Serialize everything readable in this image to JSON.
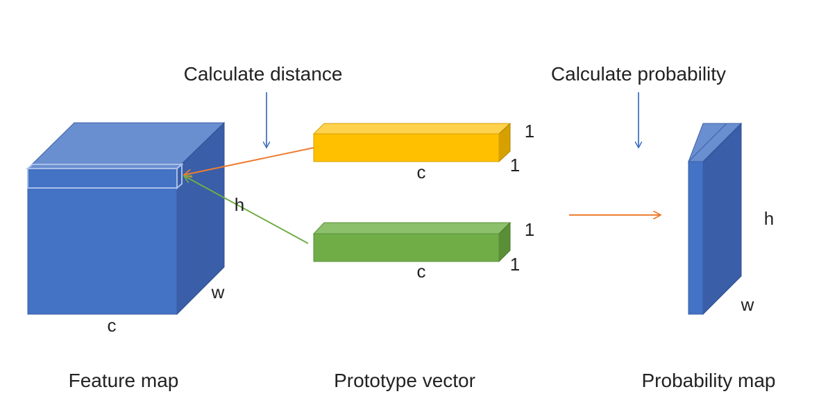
{
  "captions": {
    "calc_distance": "Calculate distance",
    "calc_probability": "Calculate probability",
    "feature_map": "Feature map",
    "prototype_vector": "Prototype vector",
    "probability_map": "Probability map"
  },
  "dims": {
    "feature_c": "c",
    "feature_h": "h",
    "feature_w": "w",
    "yellow_c": "c",
    "yellow_1_top": "1",
    "yellow_1_side": "1",
    "green_c": "c",
    "green_1_top": "1",
    "green_1_side": "1",
    "prob_h": "h",
    "prob_w": "w"
  },
  "colors": {
    "cube_front": "#4472c4",
    "cube_top": "#6a8fd0",
    "cube_side": "#3a5ea8",
    "yellow_front": "#ffc000",
    "yellow_top": "#ffd24d",
    "yellow_side": "#d6a000",
    "green_front": "#70ad47",
    "green_top": "#8cc06a",
    "green_side": "#5a8f38",
    "arrow_blue": "#4472c4",
    "arrow_orange": "#ed7d31",
    "arrow_green": "#70ad47"
  }
}
